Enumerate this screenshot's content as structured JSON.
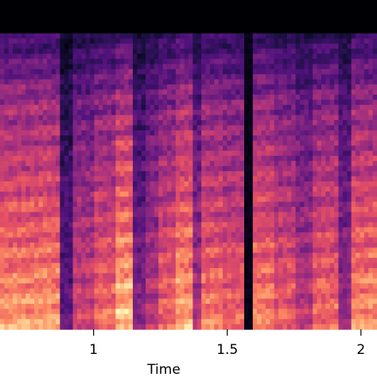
{
  "chart_data": {
    "type": "heatmap",
    "kind": "mel-spectrogram",
    "colormap": "magma",
    "xlabel": "Time",
    "ylabel": "",
    "x_ticks": [
      {
        "value": 1,
        "label": "1"
      },
      {
        "value": 1.5,
        "label": "1.5"
      },
      {
        "value": 2,
        "label": "2"
      }
    ],
    "x_range": [
      0.65,
      2.06
    ],
    "silence_intervals": [
      [
        1.57,
        1.6
      ]
    ],
    "segments": [
      [
        0.65,
        0.88,
        0.82
      ],
      [
        0.88,
        0.92,
        0.3
      ],
      [
        0.92,
        1.0,
        0.6
      ],
      [
        1.0,
        1.08,
        0.72
      ],
      [
        1.08,
        1.15,
        0.9
      ],
      [
        1.15,
        1.19,
        0.4
      ],
      [
        1.19,
        1.25,
        0.55
      ],
      [
        1.25,
        1.3,
        0.7
      ],
      [
        1.3,
        1.37,
        0.85
      ],
      [
        1.37,
        1.41,
        0.5
      ],
      [
        1.41,
        1.49,
        0.75
      ],
      [
        1.49,
        1.57,
        0.7
      ],
      [
        1.6,
        1.68,
        0.78
      ],
      [
        1.68,
        1.75,
        0.68
      ],
      [
        1.75,
        1.82,
        0.55
      ],
      [
        1.82,
        1.92,
        0.72
      ],
      [
        1.92,
        1.97,
        0.45
      ],
      [
        1.97,
        2.06,
        0.8
      ]
    ],
    "grid": false,
    "legend": "none"
  }
}
